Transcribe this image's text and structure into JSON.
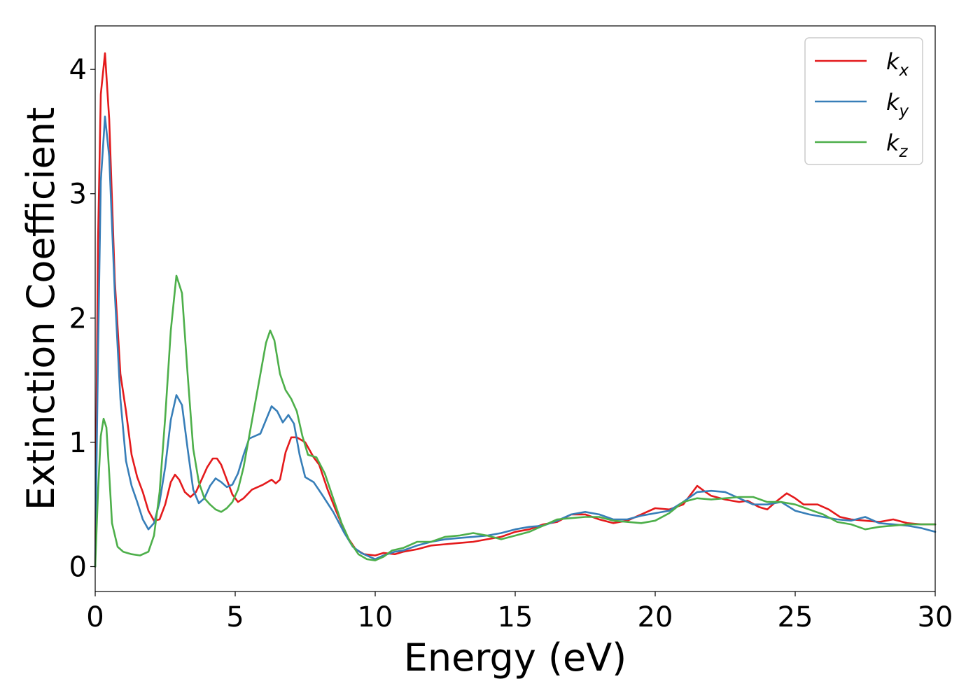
{
  "chart_data": {
    "type": "line",
    "title": "",
    "xlabel": "Energy (eV)",
    "ylabel": "Extinction Coefficient",
    "xlim": [
      0,
      30
    ],
    "ylim": [
      -0.2,
      4.35
    ],
    "xticks": [
      0,
      5,
      10,
      15,
      20,
      25,
      30
    ],
    "yticks": [
      0,
      1,
      2,
      3,
      4
    ],
    "grid": false,
    "legend_position": "top-right",
    "series": [
      {
        "name": "k",
        "subscript": "x",
        "color": "#e41a1c",
        "points": [
          [
            0,
            0
          ],
          [
            0.1,
            2.6
          ],
          [
            0.2,
            3.8
          ],
          [
            0.35,
            4.13
          ],
          [
            0.5,
            3.6
          ],
          [
            0.7,
            2.3
          ],
          [
            0.9,
            1.55
          ],
          [
            1.1,
            1.25
          ],
          [
            1.3,
            0.9
          ],
          [
            1.5,
            0.72
          ],
          [
            1.7,
            0.6
          ],
          [
            1.9,
            0.45
          ],
          [
            2.1,
            0.37
          ],
          [
            2.3,
            0.38
          ],
          [
            2.5,
            0.5
          ],
          [
            2.7,
            0.68
          ],
          [
            2.85,
            0.74
          ],
          [
            3.0,
            0.7
          ],
          [
            3.2,
            0.6
          ],
          [
            3.4,
            0.56
          ],
          [
            3.6,
            0.6
          ],
          [
            3.8,
            0.7
          ],
          [
            4.0,
            0.8
          ],
          [
            4.2,
            0.87
          ],
          [
            4.35,
            0.87
          ],
          [
            4.5,
            0.82
          ],
          [
            4.7,
            0.7
          ],
          [
            4.9,
            0.58
          ],
          [
            5.1,
            0.52
          ],
          [
            5.3,
            0.55
          ],
          [
            5.6,
            0.62
          ],
          [
            6.0,
            0.66
          ],
          [
            6.3,
            0.7
          ],
          [
            6.45,
            0.67
          ],
          [
            6.6,
            0.7
          ],
          [
            6.8,
            0.92
          ],
          [
            7.0,
            1.04
          ],
          [
            7.2,
            1.04
          ],
          [
            7.5,
            1.0
          ],
          [
            7.8,
            0.88
          ],
          [
            8.0,
            0.82
          ],
          [
            8.3,
            0.62
          ],
          [
            8.6,
            0.45
          ],
          [
            9.0,
            0.24
          ],
          [
            9.3,
            0.14
          ],
          [
            9.6,
            0.1
          ],
          [
            10.0,
            0.09
          ],
          [
            10.3,
            0.11
          ],
          [
            10.7,
            0.1
          ],
          [
            11.0,
            0.12
          ],
          [
            11.5,
            0.14
          ],
          [
            12.0,
            0.17
          ],
          [
            12.5,
            0.18
          ],
          [
            13.0,
            0.19
          ],
          [
            13.5,
            0.2
          ],
          [
            14.0,
            0.22
          ],
          [
            14.5,
            0.24
          ],
          [
            15.0,
            0.28
          ],
          [
            15.5,
            0.3
          ],
          [
            16.0,
            0.34
          ],
          [
            16.5,
            0.36
          ],
          [
            17.0,
            0.42
          ],
          [
            17.5,
            0.42
          ],
          [
            18.0,
            0.38
          ],
          [
            18.5,
            0.35
          ],
          [
            19.0,
            0.37
          ],
          [
            19.5,
            0.42
          ],
          [
            20.0,
            0.47
          ],
          [
            20.5,
            0.46
          ],
          [
            21.0,
            0.5
          ],
          [
            21.5,
            0.65
          ],
          [
            21.8,
            0.6
          ],
          [
            22.0,
            0.57
          ],
          [
            22.5,
            0.54
          ],
          [
            23.0,
            0.52
          ],
          [
            23.3,
            0.53
          ],
          [
            23.7,
            0.48
          ],
          [
            24.0,
            0.46
          ],
          [
            24.3,
            0.52
          ],
          [
            24.7,
            0.59
          ],
          [
            25.0,
            0.55
          ],
          [
            25.3,
            0.5
          ],
          [
            25.8,
            0.5
          ],
          [
            26.2,
            0.46
          ],
          [
            26.6,
            0.4
          ],
          [
            27.0,
            0.38
          ],
          [
            27.5,
            0.37
          ],
          [
            28.0,
            0.36
          ],
          [
            28.5,
            0.38
          ],
          [
            29.0,
            0.35
          ],
          [
            29.5,
            0.34
          ],
          [
            30.0,
            0.34
          ]
        ]
      },
      {
        "name": "k",
        "subscript": "y",
        "color": "#377eb8",
        "points": [
          [
            0,
            0
          ],
          [
            0.1,
            1.7
          ],
          [
            0.2,
            3.1
          ],
          [
            0.35,
            3.62
          ],
          [
            0.5,
            3.3
          ],
          [
            0.7,
            2.2
          ],
          [
            0.9,
            1.35
          ],
          [
            1.1,
            0.85
          ],
          [
            1.3,
            0.65
          ],
          [
            1.5,
            0.52
          ],
          [
            1.7,
            0.38
          ],
          [
            1.9,
            0.3
          ],
          [
            2.1,
            0.35
          ],
          [
            2.3,
            0.52
          ],
          [
            2.5,
            0.8
          ],
          [
            2.7,
            1.18
          ],
          [
            2.9,
            1.38
          ],
          [
            3.1,
            1.3
          ],
          [
            3.3,
            0.95
          ],
          [
            3.5,
            0.62
          ],
          [
            3.7,
            0.51
          ],
          [
            3.9,
            0.55
          ],
          [
            4.1,
            0.65
          ],
          [
            4.3,
            0.71
          ],
          [
            4.5,
            0.68
          ],
          [
            4.7,
            0.64
          ],
          [
            4.9,
            0.66
          ],
          [
            5.1,
            0.75
          ],
          [
            5.3,
            0.9
          ],
          [
            5.5,
            1.03
          ],
          [
            5.7,
            1.05
          ],
          [
            5.9,
            1.07
          ],
          [
            6.1,
            1.18
          ],
          [
            6.3,
            1.29
          ],
          [
            6.5,
            1.25
          ],
          [
            6.7,
            1.16
          ],
          [
            6.9,
            1.22
          ],
          [
            7.1,
            1.15
          ],
          [
            7.3,
            0.9
          ],
          [
            7.5,
            0.72
          ],
          [
            7.8,
            0.68
          ],
          [
            8.1,
            0.58
          ],
          [
            8.5,
            0.44
          ],
          [
            8.9,
            0.27
          ],
          [
            9.2,
            0.16
          ],
          [
            9.5,
            0.11
          ],
          [
            9.8,
            0.08
          ],
          [
            10.0,
            0.06
          ],
          [
            10.3,
            0.09
          ],
          [
            10.7,
            0.12
          ],
          [
            11.0,
            0.13
          ],
          [
            11.5,
            0.17
          ],
          [
            12.0,
            0.2
          ],
          [
            12.5,
            0.22
          ],
          [
            13.0,
            0.23
          ],
          [
            13.5,
            0.24
          ],
          [
            14.0,
            0.25
          ],
          [
            14.5,
            0.27
          ],
          [
            15.0,
            0.3
          ],
          [
            15.5,
            0.32
          ],
          [
            16.0,
            0.33
          ],
          [
            16.5,
            0.37
          ],
          [
            17.0,
            0.42
          ],
          [
            17.5,
            0.44
          ],
          [
            18.0,
            0.42
          ],
          [
            18.5,
            0.38
          ],
          [
            19.0,
            0.38
          ],
          [
            19.5,
            0.41
          ],
          [
            20.0,
            0.43
          ],
          [
            20.5,
            0.45
          ],
          [
            21.0,
            0.52
          ],
          [
            21.5,
            0.6
          ],
          [
            22.0,
            0.61
          ],
          [
            22.5,
            0.6
          ],
          [
            23.0,
            0.55
          ],
          [
            23.5,
            0.5
          ],
          [
            24.0,
            0.5
          ],
          [
            24.5,
            0.52
          ],
          [
            25.0,
            0.45
          ],
          [
            25.5,
            0.42
          ],
          [
            26.0,
            0.4
          ],
          [
            26.5,
            0.38
          ],
          [
            27.0,
            0.37
          ],
          [
            27.5,
            0.4
          ],
          [
            28.0,
            0.35
          ],
          [
            28.5,
            0.34
          ],
          [
            29.0,
            0.33
          ],
          [
            29.5,
            0.31
          ],
          [
            30.0,
            0.28
          ]
        ]
      },
      {
        "name": "k",
        "subscript": "z",
        "color": "#4daf4a",
        "points": [
          [
            0,
            0
          ],
          [
            0.1,
            0.6
          ],
          [
            0.2,
            1.05
          ],
          [
            0.3,
            1.19
          ],
          [
            0.4,
            1.12
          ],
          [
            0.5,
            0.75
          ],
          [
            0.6,
            0.35
          ],
          [
            0.8,
            0.16
          ],
          [
            1.0,
            0.12
          ],
          [
            1.3,
            0.1
          ],
          [
            1.6,
            0.09
          ],
          [
            1.9,
            0.12
          ],
          [
            2.1,
            0.25
          ],
          [
            2.3,
            0.6
          ],
          [
            2.5,
            1.2
          ],
          [
            2.7,
            1.9
          ],
          [
            2.9,
            2.34
          ],
          [
            3.1,
            2.2
          ],
          [
            3.3,
            1.55
          ],
          [
            3.5,
            0.95
          ],
          [
            3.7,
            0.68
          ],
          [
            3.9,
            0.55
          ],
          [
            4.1,
            0.5
          ],
          [
            4.3,
            0.46
          ],
          [
            4.5,
            0.44
          ],
          [
            4.7,
            0.47
          ],
          [
            4.9,
            0.52
          ],
          [
            5.1,
            0.62
          ],
          [
            5.3,
            0.8
          ],
          [
            5.5,
            1.05
          ],
          [
            5.7,
            1.3
          ],
          [
            5.9,
            1.55
          ],
          [
            6.1,
            1.8
          ],
          [
            6.25,
            1.9
          ],
          [
            6.4,
            1.82
          ],
          [
            6.6,
            1.55
          ],
          [
            6.8,
            1.42
          ],
          [
            7.0,
            1.35
          ],
          [
            7.2,
            1.25
          ],
          [
            7.4,
            1.05
          ],
          [
            7.6,
            0.9
          ],
          [
            7.9,
            0.88
          ],
          [
            8.2,
            0.75
          ],
          [
            8.5,
            0.55
          ],
          [
            8.8,
            0.35
          ],
          [
            9.1,
            0.2
          ],
          [
            9.4,
            0.1
          ],
          [
            9.7,
            0.06
          ],
          [
            10.0,
            0.05
          ],
          [
            10.3,
            0.08
          ],
          [
            10.6,
            0.13
          ],
          [
            11.0,
            0.15
          ],
          [
            11.5,
            0.2
          ],
          [
            12.0,
            0.2
          ],
          [
            12.5,
            0.24
          ],
          [
            13.0,
            0.25
          ],
          [
            13.5,
            0.27
          ],
          [
            14.0,
            0.25
          ],
          [
            14.5,
            0.22
          ],
          [
            15.0,
            0.25
          ],
          [
            15.5,
            0.28
          ],
          [
            16.0,
            0.33
          ],
          [
            16.5,
            0.38
          ],
          [
            17.0,
            0.39
          ],
          [
            17.5,
            0.4
          ],
          [
            18.0,
            0.4
          ],
          [
            18.5,
            0.37
          ],
          [
            19.0,
            0.36
          ],
          [
            19.5,
            0.35
          ],
          [
            20.0,
            0.37
          ],
          [
            20.5,
            0.43
          ],
          [
            21.0,
            0.52
          ],
          [
            21.5,
            0.55
          ],
          [
            22.0,
            0.54
          ],
          [
            22.5,
            0.55
          ],
          [
            23.0,
            0.56
          ],
          [
            23.5,
            0.56
          ],
          [
            24.0,
            0.52
          ],
          [
            24.5,
            0.52
          ],
          [
            25.0,
            0.5
          ],
          [
            25.5,
            0.46
          ],
          [
            26.0,
            0.42
          ],
          [
            26.5,
            0.36
          ],
          [
            27.0,
            0.34
          ],
          [
            27.5,
            0.3
          ],
          [
            28.0,
            0.32
          ],
          [
            28.5,
            0.33
          ],
          [
            29.0,
            0.34
          ],
          [
            29.5,
            0.34
          ],
          [
            30.0,
            0.34
          ]
        ]
      }
    ]
  }
}
